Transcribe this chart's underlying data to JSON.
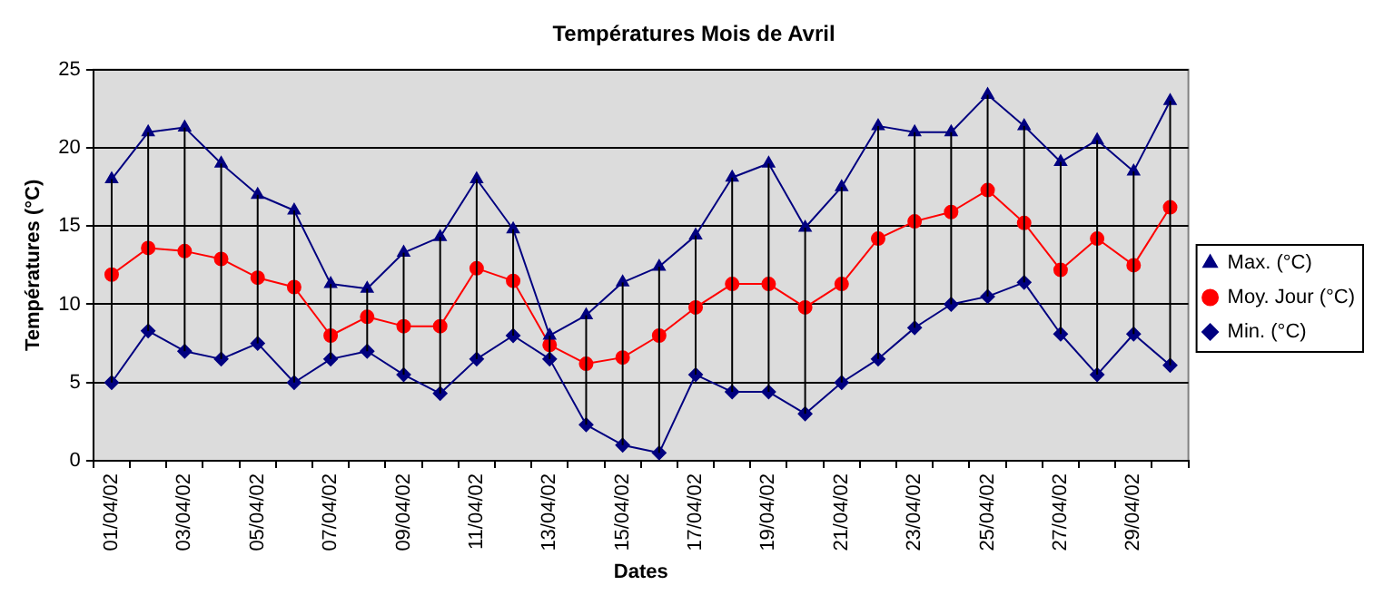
{
  "chart_data": {
    "type": "line",
    "title": "Températures Mois de Avril",
    "xlabel": "Dates",
    "ylabel": "Températures (°C)",
    "categories": [
      "01/04/02",
      null,
      "03/04/02",
      null,
      "05/04/02",
      null,
      "07/04/02",
      null,
      "09/04/02",
      null,
      "11/04/02",
      null,
      "13/04/02",
      null,
      "15/04/02",
      null,
      "17/04/02",
      null,
      "19/04/02",
      null,
      "21/04/02",
      null,
      "23/04/02",
      null,
      "25/04/02",
      null,
      "27/04/02",
      null,
      "29/04/02",
      null
    ],
    "series": [
      {
        "name": "Max. (°C)",
        "color": "#000080",
        "marker": "triangle",
        "values": [
          18,
          21,
          21.3,
          19,
          17,
          16,
          11.3,
          11,
          13.3,
          14.3,
          18,
          14.8,
          8,
          9.3,
          11.4,
          12.4,
          14.4,
          18.1,
          19,
          14.9,
          17.5,
          21.4,
          21,
          21,
          23.4,
          21.4,
          19.1,
          20.5,
          18.5,
          23
        ]
      },
      {
        "name": "Moy. Jour (°C)",
        "color": "#ff0000",
        "marker": "circle",
        "values": [
          11.9,
          13.6,
          13.4,
          12.9,
          11.7,
          11.1,
          8,
          9.2,
          8.6,
          8.6,
          12.3,
          11.5,
          7.4,
          6.2,
          6.6,
          8,
          9.8,
          11.3,
          11.3,
          9.8,
          11.3,
          14.2,
          15.3,
          15.9,
          17.3,
          15.2,
          12.2,
          14.2,
          12.5,
          16.2
        ],
        "errors": [
          [
            5,
            18
          ],
          [
            8.3,
            21
          ],
          [
            7,
            21.3
          ],
          [
            6.5,
            19
          ],
          [
            7.5,
            17
          ],
          [
            5,
            16
          ],
          [
            6.5,
            11.3
          ],
          [
            7,
            11
          ],
          [
            5.5,
            13.3
          ],
          [
            4.3,
            14.3
          ],
          [
            6.5,
            18
          ],
          [
            8,
            14.8
          ],
          [
            6.5,
            8
          ],
          [
            2.3,
            9.3
          ],
          [
            1,
            11.4
          ],
          [
            0.5,
            12.4
          ],
          [
            5.5,
            14.4
          ],
          [
            4.4,
            18.1
          ],
          [
            4.4,
            19
          ],
          [
            3,
            14.9
          ],
          [
            5,
            17.5
          ],
          [
            6.5,
            21.4
          ],
          [
            8.5,
            21
          ],
          [
            10,
            21
          ],
          [
            10.5,
            23.4
          ],
          [
            11.4,
            21.4
          ],
          [
            8.1,
            19.1
          ],
          [
            5.5,
            20.5
          ],
          [
            8.1,
            18.5
          ],
          [
            6.1,
            23
          ]
        ]
      },
      {
        "name": "Min. (°C)",
        "color": "#000080",
        "marker": "diamond",
        "values": [
          5,
          8.3,
          7,
          6.5,
          7.5,
          5,
          6.5,
          7,
          5.5,
          4.3,
          6.5,
          8,
          6.5,
          2.3,
          1,
          0.5,
          5.5,
          4.4,
          4.4,
          3,
          5,
          6.5,
          8.5,
          10,
          10.5,
          11.4,
          8.1,
          5.5,
          8.1,
          6.1
        ]
      }
    ],
    "ylim": [
      0,
      25
    ],
    "yticks": [
      0,
      5,
      10,
      15,
      20,
      25
    ],
    "grid": "y",
    "legend": "right",
    "line_style": "solid"
  }
}
